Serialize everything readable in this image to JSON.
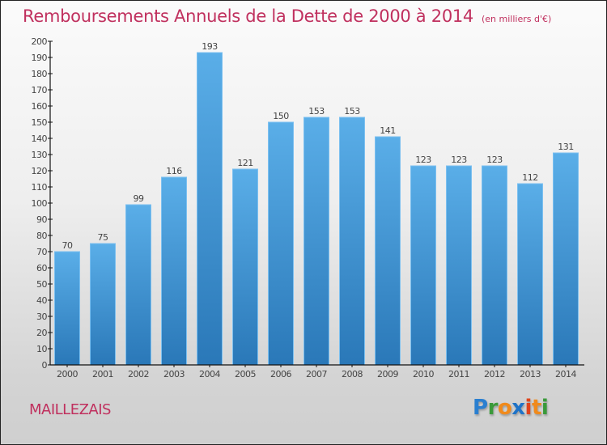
{
  "header": {
    "title": "Remboursements Annuels de la Dette de 2000 à 2014",
    "unit": "(en milliers d'€)"
  },
  "footer": {
    "commune": "MAILLEZAIS",
    "logo": {
      "text": "Proxiti",
      "letters": [
        {
          "char": "P",
          "color": "#2a7fd0"
        },
        {
          "char": "r",
          "color": "#3a9a3a"
        },
        {
          "char": "o",
          "color": "#f08a1c"
        },
        {
          "char": "x",
          "color": "#1e73c8"
        },
        {
          "char": "i",
          "color": "#e0441c"
        },
        {
          "char": "t",
          "color": "#f08a1c"
        },
        {
          "char": "i",
          "color": "#3a9a3a"
        }
      ]
    }
  },
  "colors": {
    "title": "#c0305e",
    "bar_top": "#5aaee8",
    "bar_bottom": "#2a78b8",
    "bar_edge": "#7cc0f0",
    "axis": "#111111"
  },
  "chart_data": {
    "type": "bar",
    "title": "Remboursements Annuels de la Dette de 2000 à 2014",
    "subtitle": "(en milliers d'€)",
    "xlabel": "",
    "ylabel": "",
    "categories": [
      "2000",
      "2001",
      "2002",
      "2003",
      "2004",
      "2005",
      "2006",
      "2007",
      "2008",
      "2009",
      "2010",
      "2011",
      "2012",
      "2013",
      "2014"
    ],
    "values": [
      70,
      75,
      99,
      116,
      193,
      121,
      150,
      153,
      153,
      141,
      123,
      123,
      123,
      112,
      131
    ],
    "ylim": [
      0,
      200
    ],
    "yticks": [
      0,
      10,
      20,
      30,
      40,
      50,
      60,
      70,
      80,
      90,
      100,
      110,
      120,
      130,
      140,
      150,
      160,
      170,
      180,
      190,
      200
    ],
    "grid": false,
    "legend": "none",
    "data_labels": true
  }
}
